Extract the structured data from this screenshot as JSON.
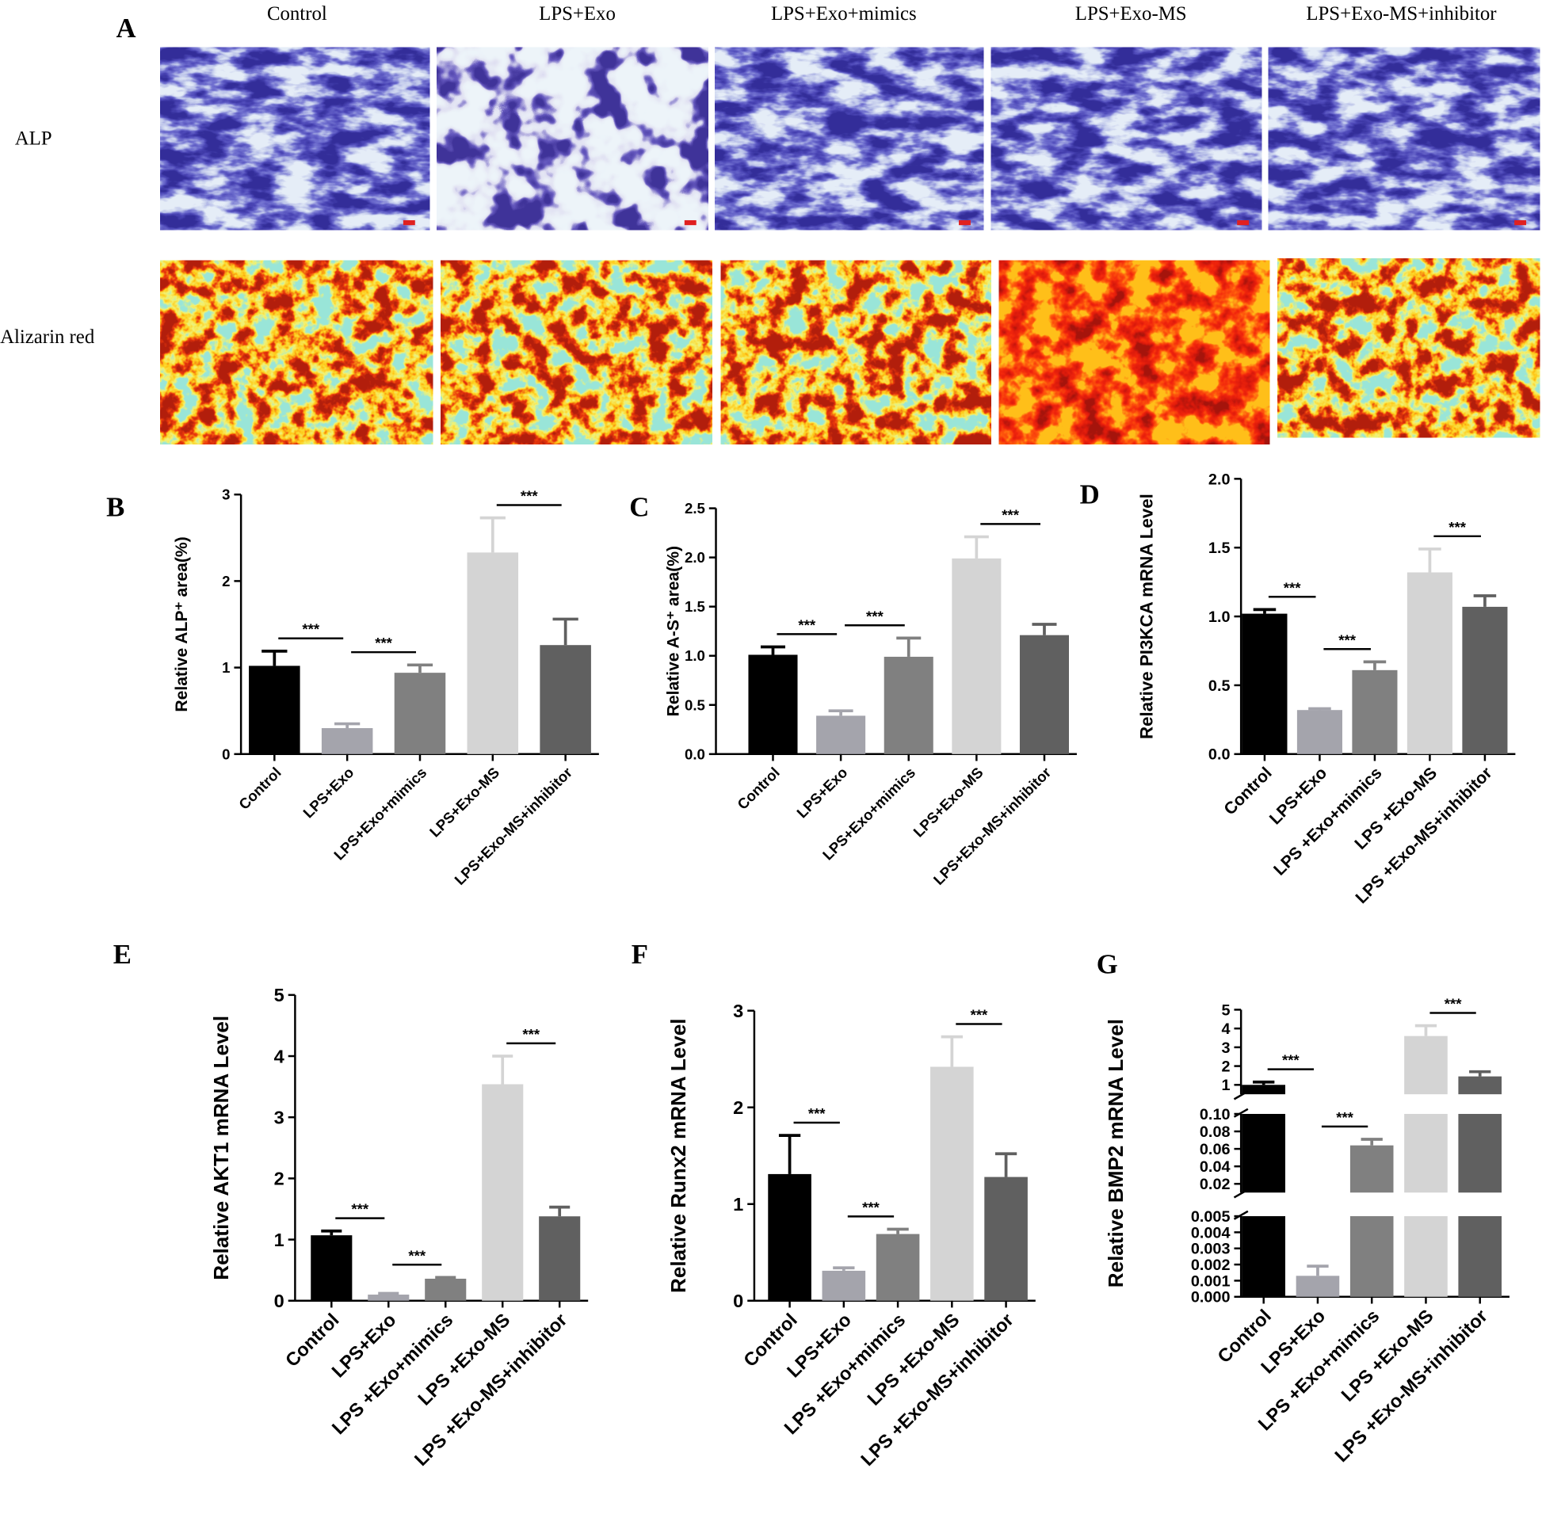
{
  "panel_A": {
    "label": "A",
    "columns": [
      "Control",
      "LPS+Exo",
      "LPS+Exo+mimics",
      "LPS+Exo-MS",
      "LPS+Exo-MS+inhibitor"
    ],
    "rows": [
      "ALP",
      "Alizarin red"
    ]
  },
  "chart_data": [
    {
      "panel": "B",
      "type": "bar",
      "ylabel": "Relative ALP⁺ area(%)",
      "categories": [
        "Control",
        "LPS+Exo",
        "LPS+Exo+mimics",
        "LPS+Exo-MS",
        "LPS+Exo-MS+inhibitor"
      ],
      "values": [
        1.02,
        0.3,
        0.94,
        2.33,
        1.26
      ],
      "errors": [
        0.17,
        0.05,
        0.09,
        0.4,
        0.3
      ],
      "colors": [
        "#000000",
        "#a4a4ac",
        "#808080",
        "#d4d4d4",
        "#606060"
      ],
      "ylim": [
        0,
        3
      ],
      "yticks": [
        0,
        1,
        2,
        3
      ],
      "significance": [
        null,
        "***",
        "***",
        null,
        "***"
      ]
    },
    {
      "panel": "C",
      "type": "bar",
      "ylabel": "Relative A-S⁺ area(%)",
      "categories": [
        "Control",
        "LPS+Exo",
        "LPS+Exo+mimics",
        "LPS+Exo-MS",
        "LPS+Exo-MS+inhibitor"
      ],
      "values": [
        1.01,
        0.39,
        0.99,
        1.99,
        1.21
      ],
      "errors": [
        0.08,
        0.05,
        0.19,
        0.22,
        0.11
      ],
      "colors": [
        "#000000",
        "#a4a4ac",
        "#808080",
        "#d4d4d4",
        "#606060"
      ],
      "ylim": [
        0,
        2.5
      ],
      "yticks": [
        {
          "value": 0,
          "label": "0.0"
        },
        0.5,
        {
          "value": 1,
          "label": "1.0"
        },
        1.5,
        {
          "value": 2,
          "label": "2.0"
        },
        2.5
      ],
      "significance": [
        null,
        "***",
        "***",
        null,
        "***"
      ]
    },
    {
      "panel": "D",
      "type": "bar",
      "ylabel": "Relative PI3KCA mRNA Level",
      "categories": [
        "Control",
        "LPS+Exo",
        "LPS +Exo+mimics",
        "LPS +Exo-MS",
        "LPS +Exo-MS+inhibitor"
      ],
      "values": [
        1.02,
        0.32,
        0.61,
        1.32,
        1.07
      ],
      "errors": [
        0.03,
        0.01,
        0.06,
        0.17,
        0.08
      ],
      "colors": [
        "#000000",
        "#a4a4ac",
        "#808080",
        "#d4d4d4",
        "#606060"
      ],
      "ylim": [
        0,
        2
      ],
      "yticks": [
        {
          "value": 0,
          "label": "0.0"
        },
        0.5,
        {
          "value": 1,
          "label": "1.0"
        },
        1.5,
        {
          "value": 2,
          "label": "2.0"
        }
      ],
      "significance": [
        null,
        "***",
        "***",
        null,
        "***"
      ]
    },
    {
      "panel": "E",
      "type": "bar",
      "ylabel": "Relative AKT1 mRNA Level",
      "categories": [
        "Control",
        "LPS+Exo",
        "LPS +Exo+mimics",
        "LPS +Exo-MS",
        "LPS +Exo-MS+inhibitor"
      ],
      "values": [
        1.07,
        0.1,
        0.36,
        3.54,
        1.38
      ],
      "errors": [
        0.07,
        0.02,
        0.02,
        0.46,
        0.15
      ],
      "colors": [
        "#000000",
        "#a4a4ac",
        "#808080",
        "#d4d4d4",
        "#606060"
      ],
      "ylim": [
        0,
        5
      ],
      "yticks": [
        0,
        1,
        2,
        3,
        4,
        5
      ],
      "significance": [
        null,
        "***",
        "***",
        null,
        "***"
      ]
    },
    {
      "panel": "F",
      "type": "bar",
      "ylabel": "Relative Runx2 mRNA Level",
      "categories": [
        "Control",
        "LPS+Exo",
        "LPS +Exo+mimics",
        "LPS +Exo-MS",
        "LPS +Exo-MS+inhibitor"
      ],
      "values": [
        1.31,
        0.31,
        0.69,
        2.42,
        1.28
      ],
      "errors": [
        0.4,
        0.03,
        0.05,
        0.31,
        0.24
      ],
      "colors": [
        "#000000",
        "#a4a4ac",
        "#808080",
        "#d4d4d4",
        "#606060"
      ],
      "ylim": [
        0,
        3
      ],
      "yticks": [
        0,
        1,
        2,
        3
      ],
      "significance": [
        null,
        "***",
        "***",
        null,
        "***"
      ]
    },
    {
      "panel": "G",
      "type": "bar",
      "ylabel": "Relative BMP2 mRNA Level",
      "categories": [
        "Control",
        "LPS+Exo",
        "LPS +Exo+mimics",
        "LPS +Exo-MS",
        "LPS +Exo-MS+inhibitor"
      ],
      "values": [
        1.0,
        0.0013,
        0.064,
        3.6,
        1.45
      ],
      "errors": [
        0.15,
        0.0006,
        0.007,
        0.55,
        0.25
      ],
      "colors": [
        "#000000",
        "#a4a4ac",
        "#808080",
        "#d4d4d4",
        "#606060"
      ],
      "y_segments": [
        {
          "ylim": [
            0,
            0.005
          ],
          "yticks": [
            {
              "value": 0,
              "label": "0.000"
            },
            0.001,
            0.002,
            0.003,
            0.004,
            0.005
          ]
        },
        {
          "ylim": [
            0.01,
            0.1
          ],
          "yticks": [
            0.02,
            0.04,
            0.06,
            0.08,
            {
              "value": 0.1,
              "label": "0.10"
            }
          ]
        },
        {
          "ylim": [
            0.5,
            5
          ],
          "yticks": [
            1,
            2,
            3,
            4,
            5
          ]
        }
      ],
      "significance": [
        null,
        "***",
        "***",
        null,
        "***"
      ]
    }
  ]
}
